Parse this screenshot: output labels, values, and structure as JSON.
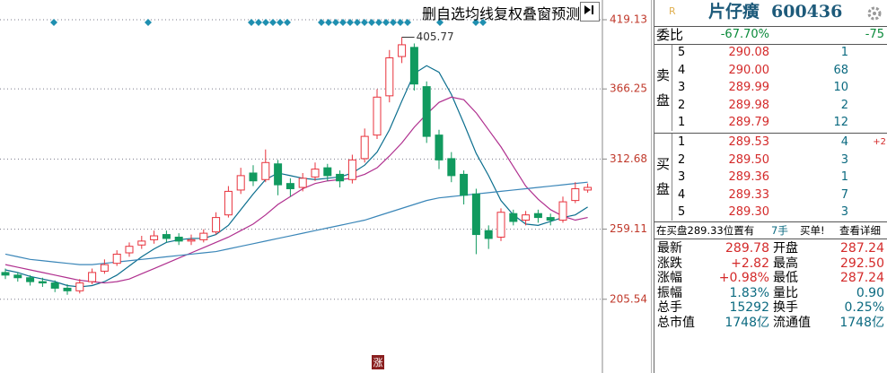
{
  "toolbar": [
    "删自选",
    "均线",
    "复权",
    "叠",
    "窗",
    "预测"
  ],
  "chart_data": {
    "type": "candlestick",
    "open": [
      226,
      224,
      222,
      219,
      218,
      214,
      212,
      219,
      227,
      233,
      241,
      247,
      251,
      255,
      253,
      250,
      251,
      257,
      270,
      289,
      302,
      297,
      309,
      294,
      291,
      299,
      306,
      301,
      297,
      313,
      331,
      361,
      391,
      398,
      368,
      331,
      313,
      301,
      286,
      258,
      253,
      271,
      266,
      271,
      268,
      266,
      281,
      289
    ],
    "high": [
      229,
      226,
      224,
      222,
      220,
      217,
      221,
      229,
      236,
      243,
      249,
      254,
      258,
      258,
      256,
      255,
      259,
      272,
      292,
      306,
      308,
      320,
      312,
      298,
      302,
      310,
      309,
      304,
      316,
      336,
      366,
      396,
      405.77,
      401,
      372,
      335,
      318,
      304,
      290,
      262,
      275,
      274,
      273,
      274,
      271,
      284,
      295,
      294
    ],
    "low": [
      221,
      219,
      216,
      215,
      211,
      209,
      210,
      217,
      225,
      231,
      238,
      244,
      248,
      249,
      247,
      247,
      249,
      255,
      268,
      286,
      292,
      295,
      285,
      284,
      288,
      296,
      296,
      291,
      294,
      310,
      328,
      356,
      386,
      365,
      325,
      305,
      295,
      278,
      240,
      244,
      250,
      262,
      262,
      264,
      262,
      264,
      279,
      287
    ],
    "close": [
      224,
      222,
      219,
      218,
      214,
      212,
      218,
      226,
      232,
      240,
      246,
      250,
      254,
      252,
      250,
      251,
      256,
      268,
      288,
      300,
      296,
      310,
      293,
      290,
      298,
      305,
      300,
      296,
      312,
      330,
      360,
      390,
      400,
      370,
      330,
      312,
      300,
      285,
      255,
      252,
      272,
      265,
      270,
      268,
      266,
      280,
      290,
      291
    ],
    "up_color": "#e8323c",
    "down_color": "#119a5f",
    "lines": [
      {
        "color": "#0b6e8e",
        "values": [
          228,
          226,
          223,
          221,
          219,
          216,
          215,
          216,
          219,
          224,
          231,
          238,
          244,
          249,
          251,
          252,
          252,
          255,
          262,
          274,
          286,
          297,
          302,
          300,
          298,
          297,
          298,
          299,
          302,
          308,
          318,
          335,
          357,
          378,
          384,
          379,
          362,
          340,
          317,
          300,
          281,
          270,
          263,
          262,
          265,
          268,
          270,
          276
        ]
      },
      {
        "color": "#b0308f",
        "values": [
          232,
          230,
          228,
          226,
          224,
          222,
          220,
          219,
          218,
          219,
          221,
          225,
          229,
          233,
          237,
          241,
          245,
          249,
          253,
          258,
          263,
          270,
          278,
          284,
          290,
          294,
          296,
          297,
          298,
          301,
          306,
          315,
          325,
          337,
          347,
          356,
          360,
          358,
          348,
          335,
          322,
          307,
          292,
          282,
          274,
          269,
          266,
          268
        ]
      },
      {
        "color": "#3a86b8",
        "values": [
          240,
          238,
          236,
          235,
          234,
          233,
          232,
          232,
          233,
          234,
          235,
          236,
          237,
          238,
          239,
          240,
          241,
          242,
          244,
          246,
          248,
          250,
          252,
          254,
          256,
          258,
          260,
          262,
          264,
          266,
          269,
          272,
          275,
          278,
          281,
          283,
          284,
          285,
          286,
          287,
          288,
          289,
          290,
          291,
          292,
          293,
          294,
          295
        ]
      }
    ],
    "ylim": [
      149.2,
      434.2
    ],
    "yticks": [
      205.54,
      259.11,
      312.68,
      366.25,
      419.13
    ],
    "grid": true
  },
  "quote": {
    "mark": "R",
    "name": "片仔癀",
    "code": "600436",
    "weibi": {
      "label": "委比",
      "ratio": "-67.70%",
      "diff": "-75"
    },
    "sell_label": "卖盘",
    "buy_label": "买盘",
    "asks": [
      [
        "5",
        "290.08",
        "1"
      ],
      [
        "4",
        "290.00",
        "68"
      ],
      [
        "3",
        "289.99",
        "10"
      ],
      [
        "2",
        "289.98",
        "2"
      ],
      [
        "1",
        "289.79",
        "12"
      ]
    ],
    "bids": [
      [
        "1",
        "289.53",
        "4",
        "+2"
      ],
      [
        "2",
        "289.50",
        "3"
      ],
      [
        "3",
        "289.36",
        "1"
      ],
      [
        "4",
        "289.33",
        "7"
      ],
      [
        "5",
        "289.30",
        "3"
      ]
    ],
    "notice": {
      "text": "在买盘289.33位置有",
      "lots": "7手",
      "order": "买单!",
      "link": "查看详细"
    },
    "stats": [
      [
        "最新",
        "289.78",
        "开盘",
        "287.24"
      ],
      [
        "涨跌",
        "+2.82",
        "最高",
        "292.50"
      ],
      [
        "涨幅",
        "+0.98%",
        "最低",
        "287.24"
      ],
      [
        "振幅",
        "1.83%",
        "量比",
        "0.90"
      ],
      [
        "总手",
        "15292",
        "换手",
        "0.25%"
      ],
      [
        "总市值",
        "1748亿",
        "流通值",
        "1748亿"
      ]
    ]
  },
  "footer_mark": "涨"
}
